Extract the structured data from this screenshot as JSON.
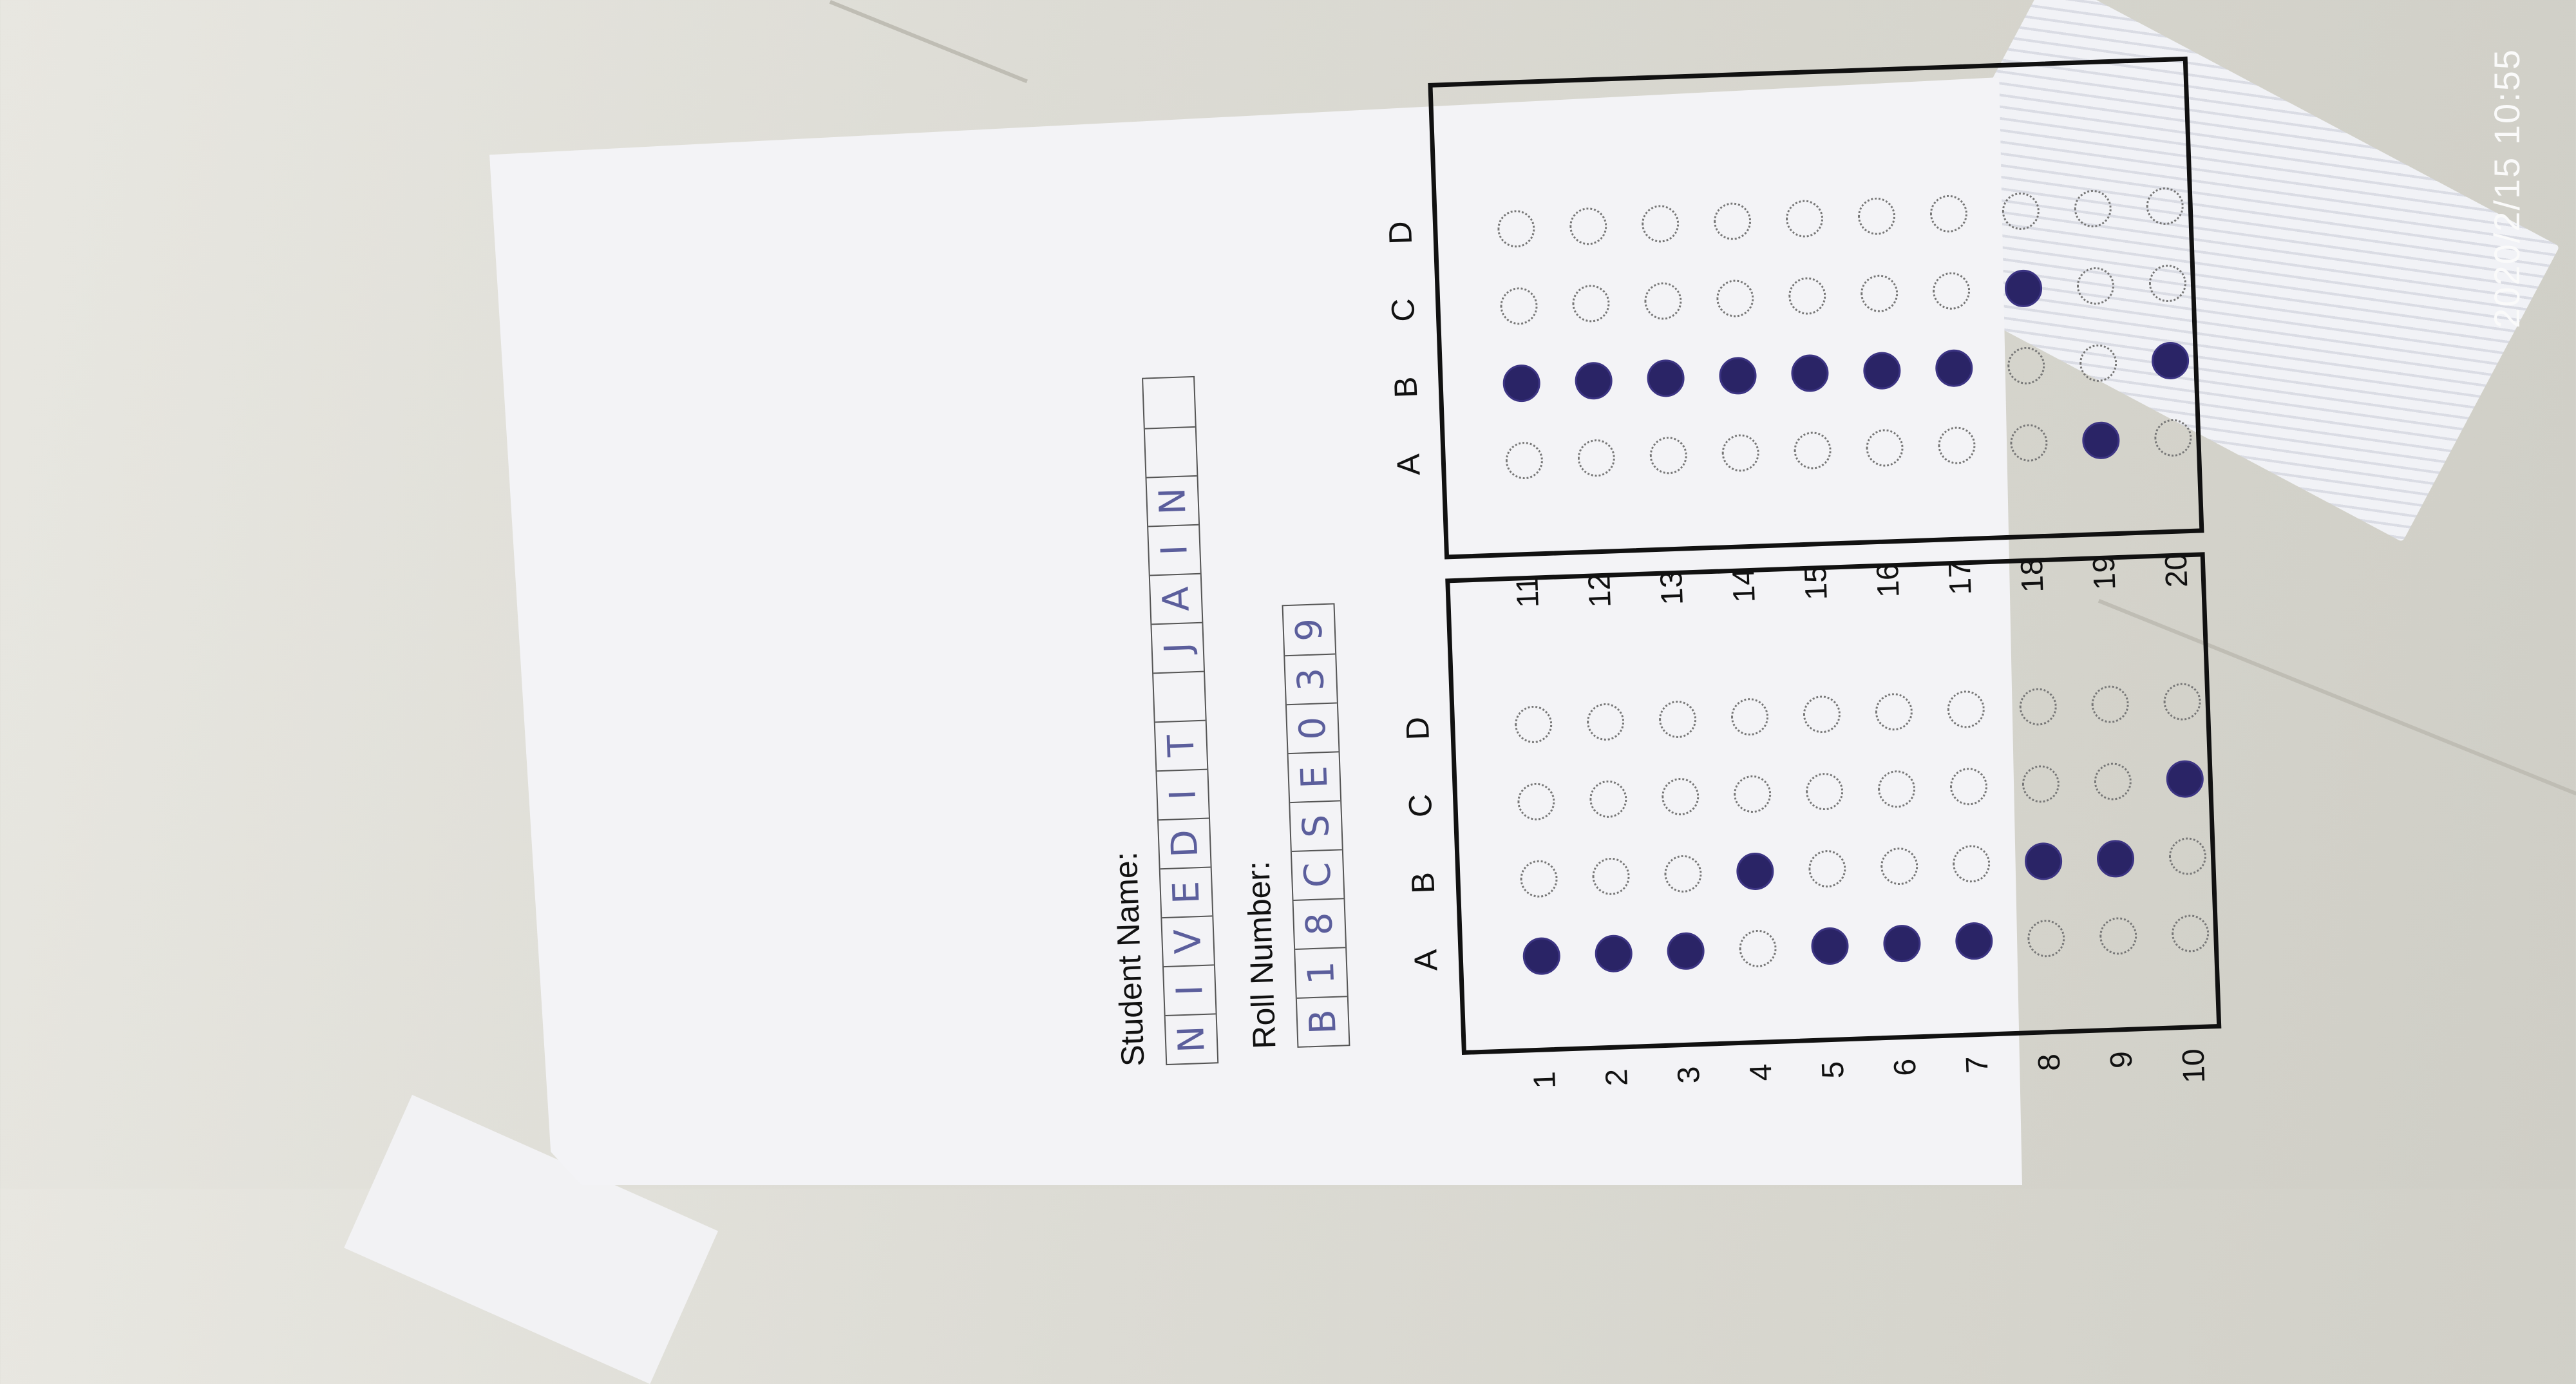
{
  "timestamp": "2020/2/15 10:55",
  "sheet": {
    "student_name_label": "Student Name:",
    "student_name_boxes": [
      "N",
      "I",
      "V",
      "E",
      "D",
      "I",
      "T",
      "",
      "J",
      "A",
      "I",
      "N",
      "",
      ""
    ],
    "roll_number_label": "Roll Number:",
    "roll_number_boxes": [
      "B",
      "1",
      "8",
      "C",
      "S",
      "E",
      "0",
      "3",
      "9"
    ],
    "options": [
      "A",
      "B",
      "C",
      "D"
    ],
    "answers": [
      {
        "q": "1",
        "choice": "A"
      },
      {
        "q": "2",
        "choice": "A"
      },
      {
        "q": "3",
        "choice": "A"
      },
      {
        "q": "4",
        "choice": "B"
      },
      {
        "q": "5",
        "choice": "A"
      },
      {
        "q": "6",
        "choice": "A"
      },
      {
        "q": "7",
        "choice": "A"
      },
      {
        "q": "8",
        "choice": "B"
      },
      {
        "q": "9",
        "choice": "B"
      },
      {
        "q": "10",
        "choice": "C"
      },
      {
        "q": "11",
        "choice": "B"
      },
      {
        "q": "12",
        "choice": "B"
      },
      {
        "q": "13",
        "choice": "B"
      },
      {
        "q": "14",
        "choice": "B"
      },
      {
        "q": "15",
        "choice": "B"
      },
      {
        "q": "16",
        "choice": "B"
      },
      {
        "q": "17",
        "choice": "B"
      },
      {
        "q": "18",
        "choice": "C"
      },
      {
        "q": "19",
        "choice": "A"
      },
      {
        "q": "20",
        "choice": "B"
      }
    ]
  },
  "colors": {
    "ink": "#2a2466",
    "handwriting": "#5b5e9c"
  }
}
